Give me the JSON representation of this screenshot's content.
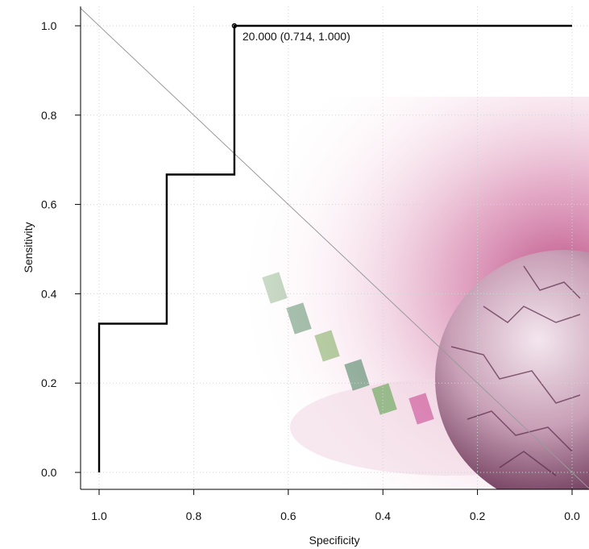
{
  "chart_data": {
    "type": "line",
    "title": "",
    "xlabel": "Specificity",
    "ylabel": "Sensitivity",
    "x_reversed": true,
    "xlim": [
      1.04,
      0.0
    ],
    "ylim": [
      0.0,
      1.0
    ],
    "x_ticks": [
      1.0,
      0.8,
      0.6,
      0.4,
      0.2,
      0.0
    ],
    "y_ticks": [
      0.0,
      0.2,
      0.4,
      0.6,
      0.8,
      1.0
    ],
    "x_tick_labels": [
      "1.0",
      "0.8",
      "0.6",
      "0.4",
      "0.2",
      "0.0"
    ],
    "y_tick_labels": [
      "0.0",
      "0.2",
      "0.4",
      "0.6",
      "0.8",
      "1.0"
    ],
    "grid": true,
    "series": [
      {
        "line_color": "#000000",
        "x": [
          1.0,
          1.0,
          0.857,
          0.857,
          0.714,
          0.714,
          0.0
        ],
        "y": [
          0.0,
          0.333,
          0.333,
          0.667,
          0.667,
          1.0,
          1.0
        ]
      }
    ],
    "reference_line": {
      "x": [
        1.0,
        0.0
      ],
      "y": [
        0.0,
        1.0
      ],
      "color": "#9a9a9a"
    },
    "annotations": [
      {
        "x": 0.714,
        "y": 1.0,
        "text": "20.000 (0.714, 1.000)"
      }
    ]
  }
}
